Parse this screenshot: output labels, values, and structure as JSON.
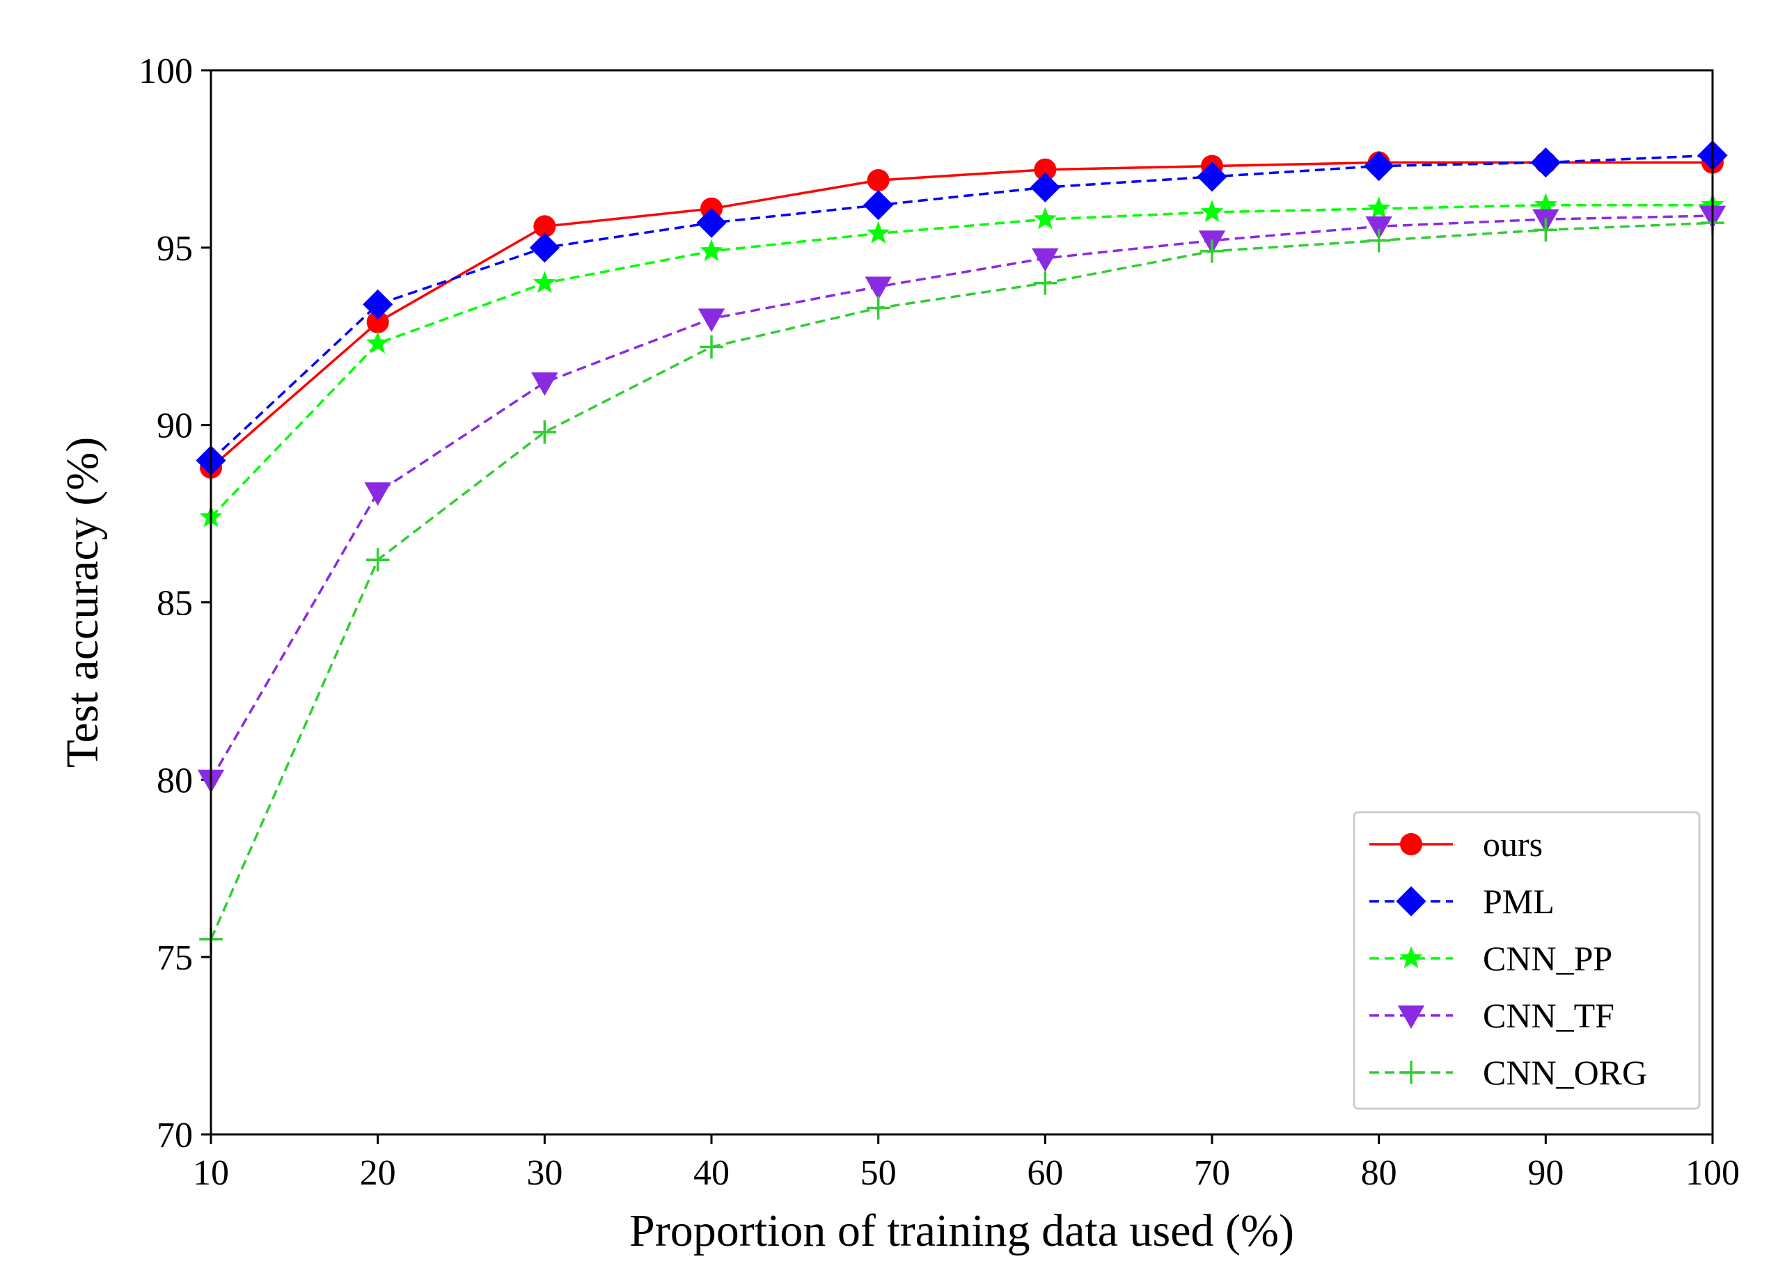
{
  "chart_data": {
    "type": "line",
    "title": "",
    "xlabel": "Proportion of training data used (%)",
    "ylabel": "Test accuracy (%)",
    "xlim": [
      10,
      100
    ],
    "ylim": [
      70,
      100
    ],
    "xticks": [
      "10",
      "20",
      "30",
      "40",
      "50",
      "60",
      "70",
      "80",
      "90",
      "100"
    ],
    "yticks": [
      "70",
      "75",
      "80",
      "85",
      "90",
      "95",
      "100"
    ],
    "grid": false,
    "legend_position": "lower-right",
    "x": [
      10,
      20,
      30,
      40,
      50,
      60,
      70,
      80,
      90,
      100
    ],
    "series": [
      {
        "name": "ours",
        "color": "#ff0000",
        "dash": "solid",
        "marker": "circle",
        "values": [
          88.8,
          92.9,
          95.6,
          96.1,
          96.9,
          97.2,
          97.3,
          97.4,
          97.4,
          97.4
        ]
      },
      {
        "name": "PML",
        "color": "#0000ff",
        "dash": "dashed",
        "marker": "diamond",
        "values": [
          89.0,
          93.4,
          95.0,
          95.7,
          96.2,
          96.7,
          97.0,
          97.3,
          97.4,
          97.6
        ]
      },
      {
        "name": "CNN_PP",
        "color": "#00ff00",
        "dash": "dashed",
        "marker": "star",
        "values": [
          87.4,
          92.3,
          94.0,
          94.9,
          95.4,
          95.8,
          96.0,
          96.1,
          96.2,
          96.2
        ]
      },
      {
        "name": "CNN_TF",
        "color": "#8a2be2",
        "dash": "dashed",
        "marker": "triangle-down",
        "values": [
          80.0,
          88.1,
          91.2,
          93.0,
          93.9,
          94.7,
          95.2,
          95.6,
          95.8,
          95.9
        ]
      },
      {
        "name": "CNN_ORG",
        "color": "#32cd32",
        "dash": "dashed",
        "marker": "plus",
        "values": [
          75.5,
          86.2,
          89.8,
          92.2,
          93.3,
          94.0,
          94.9,
          95.2,
          95.5,
          95.7
        ]
      }
    ]
  }
}
